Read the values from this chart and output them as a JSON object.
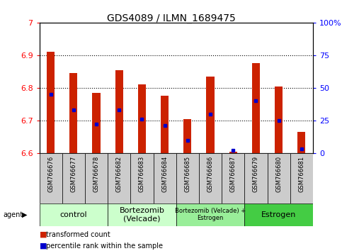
{
  "title": "GDS4089 / ILMN_1689475",
  "samples": [
    "GSM766676",
    "GSM766677",
    "GSM766678",
    "GSM766682",
    "GSM766683",
    "GSM766684",
    "GSM766685",
    "GSM766686",
    "GSM766687",
    "GSM766679",
    "GSM766680",
    "GSM766681"
  ],
  "red_values": [
    6.91,
    6.845,
    6.785,
    6.855,
    6.81,
    6.775,
    6.705,
    6.835,
    6.605,
    6.875,
    6.805,
    6.665
  ],
  "blue_values_pct": [
    45,
    33,
    22,
    33,
    26,
    21,
    10,
    30,
    2,
    40,
    25,
    3
  ],
  "ymin": 6.6,
  "ymax": 7.0,
  "yticks_left": [
    6.6,
    6.7,
    6.8,
    6.9,
    7.0
  ],
  "ytick_left_labels": [
    "6.6",
    "6.7",
    "6.8",
    "6.9",
    "7"
  ],
  "right_yticks": [
    0,
    25,
    50,
    75,
    100
  ],
  "right_ytick_labels": [
    "0",
    "25",
    "50",
    "75",
    "100%"
  ],
  "grid_lines": [
    6.7,
    6.8,
    6.9
  ],
  "bar_color": "#cc2200",
  "blue_color": "#0000cc",
  "bar_width": 0.35,
  "group_data": [
    {
      "start": 0,
      "end": 3,
      "label": "control",
      "color": "#ccffcc",
      "fontsize": 8
    },
    {
      "start": 3,
      "end": 6,
      "label": "Bortezomib\n(Velcade)",
      "color": "#ccffcc",
      "fontsize": 8
    },
    {
      "start": 6,
      "end": 9,
      "label": "Bortezomib (Velcade) +\nEstrogen",
      "color": "#99ee99",
      "fontsize": 6
    },
    {
      "start": 9,
      "end": 12,
      "label": "Estrogen",
      "color": "#44cc44",
      "fontsize": 8
    }
  ],
  "tick_bg_color": "#cccccc",
  "legend_items": [
    {
      "color": "#cc2200",
      "label": "transformed count"
    },
    {
      "color": "#0000cc",
      "label": "percentile rank within the sample"
    }
  ]
}
